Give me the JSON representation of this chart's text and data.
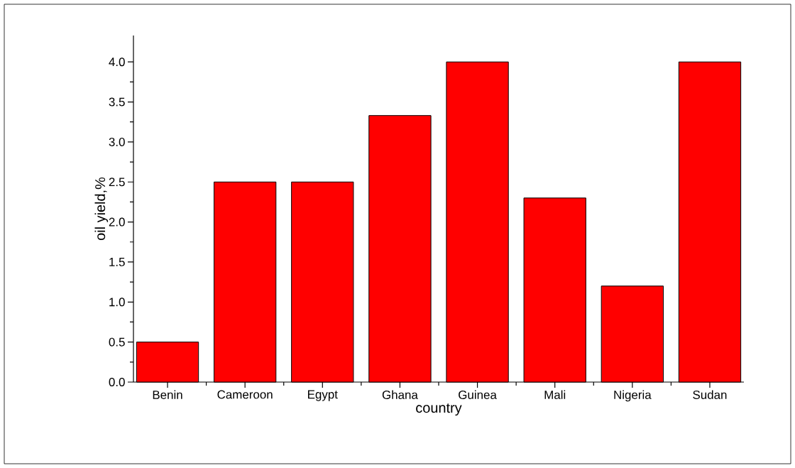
{
  "chart_data": {
    "type": "bar",
    "xlabel": "country",
    "ylabel": "oil yield,%",
    "categories": [
      "Benin",
      "Cameroon",
      "Egypt",
      "Ghana",
      "Guinea",
      "Mali",
      "Nigeria",
      "Sudan"
    ],
    "values": [
      0.5,
      2.5,
      2.5,
      3.33,
      4.0,
      2.3,
      1.2,
      4.0
    ],
    "color": "#ff0000",
    "ylim": [
      0,
      4.33
    ],
    "yticks": [
      {
        "value": 0,
        "label": "0.0"
      },
      {
        "value": 0.5,
        "label": "0.5"
      },
      {
        "value": 1,
        "label": "1.0"
      },
      {
        "value": 1.5,
        "label": "1.5"
      },
      {
        "value": 2,
        "label": "2.0"
      },
      {
        "value": 2.5,
        "label": "2.5"
      },
      {
        "value": 3,
        "label": "3.0"
      },
      {
        "value": 3.5,
        "label": "3.5"
      },
      {
        "value": 4,
        "label": "4.0"
      }
    ],
    "grid": false
  }
}
